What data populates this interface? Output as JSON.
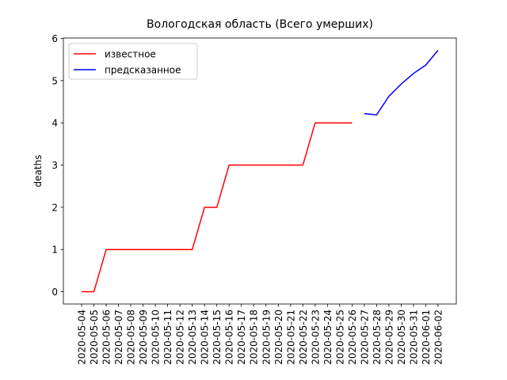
{
  "chart_data": {
    "type": "line",
    "title": "Вологодская область (Всего умерших)",
    "y_label": "deaths",
    "categories": [
      "2020-05-04",
      "2020-05-05",
      "2020-05-06",
      "2020-05-07",
      "2020-05-08",
      "2020-05-09",
      "2020-05-10",
      "2020-05-11",
      "2020-05-12",
      "2020-05-13",
      "2020-05-14",
      "2020-05-15",
      "2020-05-16",
      "2020-05-17",
      "2020-05-18",
      "2020-05-19",
      "2020-05-20",
      "2020-05-21",
      "2020-05-22",
      "2020-05-23",
      "2020-05-24",
      "2020-05-25",
      "2020-05-26",
      "2020-05-27",
      "2020-05-28",
      "2020-05-29",
      "2020-05-30",
      "2020-05-31",
      "2020-06-01",
      "2020-06-02"
    ],
    "series": [
      {
        "name": "известное",
        "color": "#ff0000",
        "values": [
          0,
          0,
          1,
          1,
          1,
          1,
          1,
          1,
          1,
          1,
          2,
          2,
          3,
          3,
          3,
          3,
          3,
          3,
          3,
          4,
          4,
          4,
          4,
          null,
          null,
          null,
          null,
          null,
          null,
          null
        ]
      },
      {
        "name": "предсказанное",
        "color": "#0000ff",
        "values": [
          null,
          null,
          null,
          null,
          null,
          null,
          null,
          null,
          null,
          null,
          null,
          null,
          null,
          null,
          null,
          null,
          null,
          null,
          null,
          null,
          null,
          null,
          null,
          4.22,
          4.19,
          4.63,
          4.92,
          5.17,
          5.37,
          5.72
        ]
      }
    ],
    "ylim": [
      -0.29,
      6.01
    ],
    "yticks": [
      0,
      1,
      2,
      3,
      4,
      5,
      6
    ],
    "legend": "upper left"
  }
}
